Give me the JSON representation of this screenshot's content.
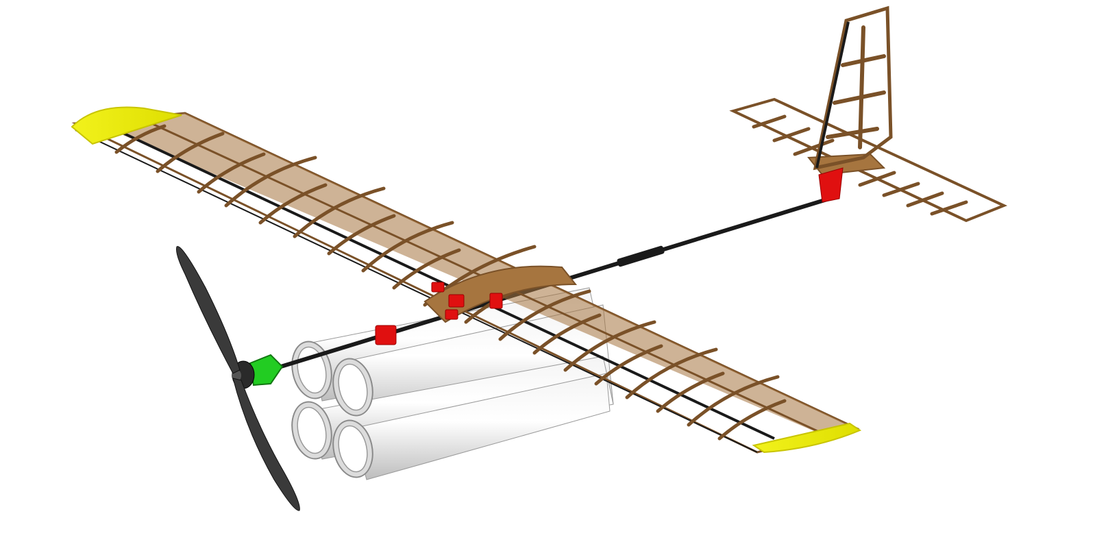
{
  "scene": {
    "description_type": "3D CAD render of RC aircraft airframe",
    "colors": {
      "background": "#ffffff",
      "balsa": "#a6753f",
      "balsa_dark": "#7a5128",
      "balsa_light": "#c89a5f",
      "wingtip": "#f2f21c",
      "wingtip_edge": "#c8c400",
      "carbon": "#1a1a1a",
      "mount": "#e01010",
      "motor_mount": "#22cc22",
      "propeller": "#3a3a3a",
      "tube_light": "#ffffff",
      "tube_shade": "#bdbdbd"
    },
    "parts": [
      "left-wingtip",
      "right-wingtip",
      "wing-frame",
      "main-spar",
      "fuselage-boom",
      "tail-boom-coupler",
      "horizontal-stabilizer",
      "vertical-stabilizer",
      "tail-mount",
      "wing-mounts",
      "motor-mount",
      "motor",
      "propeller",
      "payload-tubes"
    ]
  }
}
